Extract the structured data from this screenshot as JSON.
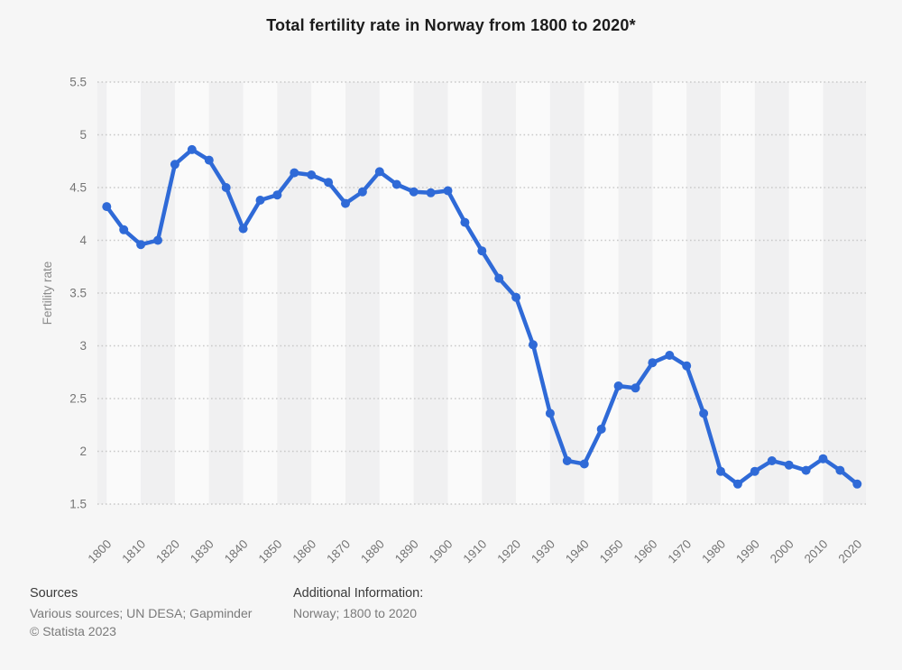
{
  "chart_data": {
    "type": "line",
    "title": "Total fertility rate in Norway from 1800 to 2020*",
    "xlabel": "",
    "ylabel": "Fertility rate",
    "series_name": "Fertility rate",
    "ylim": [
      1.5,
      5.5
    ],
    "ytick_step": 0.5,
    "ytick_labels": [
      "5.5",
      "5",
      "4.5",
      "4",
      "3.5",
      "3",
      "2.5",
      "2",
      "1.5"
    ],
    "xtick_labels": [
      "1800",
      "1810",
      "1820",
      "1830",
      "1840",
      "1850",
      "1860",
      "1870",
      "1880",
      "1890",
      "1900",
      "1910",
      "1920",
      "1930",
      "1940",
      "1950",
      "1960",
      "1970",
      "1980",
      "1990",
      "2000",
      "2010",
      "2020"
    ],
    "x": [
      1800,
      1805,
      1810,
      1815,
      1820,
      1825,
      1830,
      1835,
      1840,
      1845,
      1850,
      1855,
      1860,
      1865,
      1870,
      1875,
      1880,
      1885,
      1890,
      1895,
      1900,
      1905,
      1910,
      1915,
      1920,
      1925,
      1930,
      1935,
      1940,
      1945,
      1950,
      1955,
      1960,
      1965,
      1970,
      1975,
      1980,
      1985,
      1990,
      1995,
      2000,
      2005,
      2010,
      2015,
      2020
    ],
    "values": [
      4.32,
      4.1,
      3.96,
      4.0,
      4.72,
      4.86,
      4.76,
      4.5,
      4.11,
      4.38,
      4.43,
      4.64,
      4.62,
      4.55,
      4.35,
      4.46,
      4.65,
      4.53,
      4.46,
      4.45,
      4.47,
      4.17,
      3.9,
      3.64,
      3.46,
      3.01,
      2.36,
      1.91,
      1.88,
      2.21,
      2.62,
      2.6,
      2.84,
      2.91,
      2.81,
      2.36,
      1.81,
      1.69,
      1.81,
      1.91,
      1.87,
      1.82,
      1.93,
      1.82,
      1.69
    ],
    "grid": "horizontal-dotted",
    "legend": "none",
    "line_color": "#2f6ad7",
    "band_colors": [
      "#fafafa",
      "#f0f0f1"
    ],
    "gridline_color": "#c9c9c9",
    "axis_text_color": "#757575",
    "axis_title_color": "#8c8c8c"
  },
  "footer": {
    "sources_label": "Sources",
    "sources_text": "Various sources; UN DESA; Gapminder",
    "copyright": "© Statista 2023",
    "additional_info_label": "Additional Information:",
    "additional_info_text": "Norway; 1800 to 2020"
  }
}
